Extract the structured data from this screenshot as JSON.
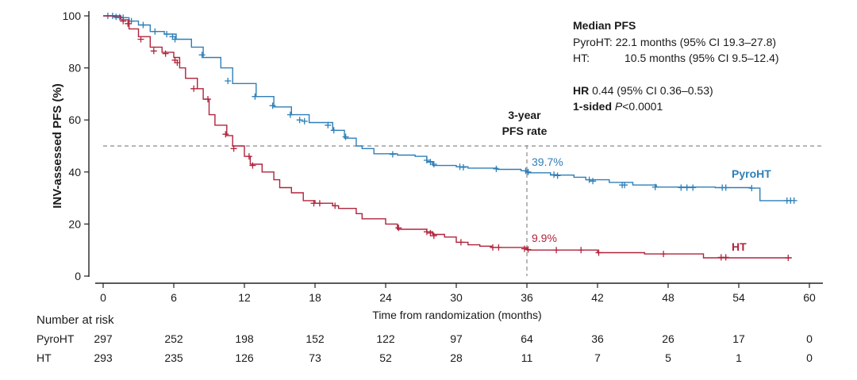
{
  "chart_data": {
    "type": "line",
    "ylabel": "INV-assessed PFS (%)",
    "xlabel": "Time from randomization (months)",
    "xlim": [
      0,
      60
    ],
    "ylim": [
      0,
      100
    ],
    "x_ticks": [
      0,
      6,
      12,
      18,
      24,
      30,
      36,
      42,
      48,
      54,
      60
    ],
    "y_ticks": [
      0,
      20,
      40,
      60,
      80,
      100
    ],
    "reference_line_y": 50,
    "reference_line_x": 36,
    "reference_label": [
      "3-year",
      "PFS rate"
    ],
    "series": [
      {
        "name": "PyroHT",
        "color": "#2e7fb8",
        "steps": [
          [
            0,
            100
          ],
          [
            1,
            99.3
          ],
          [
            2.2,
            98
          ],
          [
            3,
            96.5
          ],
          [
            4,
            94
          ],
          [
            5.2,
            93
          ],
          [
            6.2,
            91
          ],
          [
            7.5,
            88
          ],
          [
            8.5,
            84
          ],
          [
            10,
            80
          ],
          [
            11,
            74
          ],
          [
            13,
            69
          ],
          [
            14.5,
            65
          ],
          [
            16,
            62
          ],
          [
            17.5,
            59
          ],
          [
            19.5,
            56
          ],
          [
            20.5,
            53
          ],
          [
            21.5,
            50
          ],
          [
            22,
            49
          ],
          [
            23,
            47
          ],
          [
            25,
            46.5
          ],
          [
            26.5,
            46
          ],
          [
            27.5,
            44
          ],
          [
            28,
            42.5
          ],
          [
            30,
            42
          ],
          [
            31,
            41.5
          ],
          [
            33.5,
            41
          ],
          [
            35.5,
            40.5
          ],
          [
            36,
            39.7
          ],
          [
            38,
            38.8
          ],
          [
            40,
            38
          ],
          [
            41,
            37
          ],
          [
            43,
            36
          ],
          [
            45,
            35
          ],
          [
            47,
            34.2
          ],
          [
            52,
            34
          ],
          [
            55,
            33.8
          ],
          [
            55.8,
            29
          ],
          [
            58.5,
            29
          ]
        ],
        "censors": [
          [
            0.4,
            100
          ],
          [
            0.8,
            100
          ],
          [
            1.1,
            99.6
          ],
          [
            1.4,
            99.5
          ],
          [
            1.7,
            99.3
          ],
          [
            2.4,
            98
          ],
          [
            3.4,
            96.5
          ],
          [
            4.4,
            94
          ],
          [
            5.4,
            93
          ],
          [
            5.9,
            92
          ],
          [
            6.1,
            91
          ],
          [
            8.4,
            85
          ],
          [
            10.6,
            75
          ],
          [
            12.9,
            69
          ],
          [
            14.4,
            65.5
          ],
          [
            15.9,
            62
          ],
          [
            16.7,
            60
          ],
          [
            17.1,
            59.5
          ],
          [
            19.1,
            58
          ],
          [
            19.6,
            56
          ],
          [
            20.6,
            53.5
          ],
          [
            24.6,
            46.8
          ],
          [
            27.5,
            44.5
          ],
          [
            27.8,
            43.8
          ],
          [
            28.1,
            43
          ],
          [
            30.3,
            42
          ],
          [
            30.6,
            41.8
          ],
          [
            33.4,
            41.2
          ],
          [
            35.9,
            40.5
          ],
          [
            36.1,
            40
          ],
          [
            38.3,
            39
          ],
          [
            38.6,
            38.6
          ],
          [
            41.3,
            37
          ],
          [
            41.6,
            36.5
          ],
          [
            44.1,
            35
          ],
          [
            44.3,
            35
          ],
          [
            46.9,
            34.2
          ],
          [
            49.1,
            34
          ],
          [
            49.6,
            34
          ],
          [
            50.1,
            34
          ],
          [
            52.6,
            34
          ],
          [
            52.9,
            34
          ],
          [
            55.1,
            33.8
          ],
          [
            58.1,
            29
          ],
          [
            58.4,
            29
          ],
          [
            58.7,
            29
          ]
        ],
        "label": "PyroHT",
        "rate_label": "39.7%"
      },
      {
        "name": "HT",
        "color": "#b0233b",
        "steps": [
          [
            0,
            100
          ],
          [
            1.5,
            98.5
          ],
          [
            2.2,
            95
          ],
          [
            3,
            92
          ],
          [
            4,
            88
          ],
          [
            5,
            86
          ],
          [
            6,
            84
          ],
          [
            6.5,
            80
          ],
          [
            7,
            76
          ],
          [
            8,
            72
          ],
          [
            8.5,
            68
          ],
          [
            9,
            62
          ],
          [
            9.5,
            58
          ],
          [
            10.5,
            54
          ],
          [
            11,
            50
          ],
          [
            12,
            46
          ],
          [
            12.5,
            43
          ],
          [
            13.5,
            40
          ],
          [
            14.5,
            37
          ],
          [
            15,
            34
          ],
          [
            16,
            32
          ],
          [
            17,
            29
          ],
          [
            18,
            28
          ],
          [
            19.5,
            27
          ],
          [
            20,
            26
          ],
          [
            21.5,
            24
          ],
          [
            22,
            22
          ],
          [
            24,
            20
          ],
          [
            25,
            18
          ],
          [
            27.5,
            17
          ],
          [
            28,
            16
          ],
          [
            29,
            15
          ],
          [
            30,
            13
          ],
          [
            31,
            12
          ],
          [
            32,
            11.5
          ],
          [
            33,
            11
          ],
          [
            36,
            10
          ],
          [
            40,
            10
          ],
          [
            42,
            9
          ],
          [
            46,
            8.5
          ],
          [
            51,
            7
          ],
          [
            58.5,
            7
          ]
        ],
        "censors": [
          [
            1.7,
            98
          ],
          [
            2.1,
            97
          ],
          [
            3.2,
            91
          ],
          [
            4.3,
            86.5
          ],
          [
            5.3,
            85.5
          ],
          [
            6.1,
            83
          ],
          [
            6.3,
            82
          ],
          [
            7.7,
            72
          ],
          [
            8.9,
            68
          ],
          [
            10.4,
            54.5
          ],
          [
            11.1,
            49
          ],
          [
            12.4,
            46
          ],
          [
            12.7,
            42.5
          ],
          [
            17.9,
            28
          ],
          [
            18.4,
            28
          ],
          [
            19.7,
            27
          ],
          [
            25.1,
            18.5
          ],
          [
            27.5,
            17
          ],
          [
            27.8,
            16.5
          ],
          [
            28.1,
            15.5
          ],
          [
            30.4,
            13
          ],
          [
            33.1,
            11
          ],
          [
            33.6,
            11
          ],
          [
            35.8,
            10.5
          ],
          [
            36.1,
            10.2
          ],
          [
            38.5,
            10
          ],
          [
            40.6,
            10
          ],
          [
            42.1,
            9
          ],
          [
            47.6,
            8.5
          ],
          [
            52.5,
            7.2
          ],
          [
            52.9,
            7.2
          ],
          [
            58.2,
            7
          ]
        ],
        "label": "HT",
        "rate_label": "9.9%"
      }
    ],
    "risk_table": {
      "title": "Number at risk",
      "times": [
        0,
        6,
        12,
        18,
        24,
        30,
        36,
        42,
        48,
        54,
        60
      ],
      "rows": [
        {
          "label": "PyroHT",
          "counts": [
            297,
            252,
            198,
            152,
            122,
            97,
            64,
            36,
            26,
            17,
            0
          ]
        },
        {
          "label": "HT",
          "counts": [
            293,
            235,
            126,
            73,
            52,
            28,
            11,
            7,
            5,
            1,
            0
          ]
        }
      ]
    }
  },
  "annotations": {
    "median_title": "Median PFS",
    "median_pyroht_label": "PyroHT:",
    "median_pyroht_value": "22.1 months (95% CI 19.3–27.8)",
    "median_ht_label": "HT:",
    "median_ht_value": "10.5 months (95% CI 9.5–12.4)",
    "hr_label": "HR",
    "hr_value": "0.44 (95% CI 0.36–0.53)",
    "pvalue_label": "1-sided",
    "pvalue_p": "P",
    "pvalue_value": "<0.0001"
  }
}
